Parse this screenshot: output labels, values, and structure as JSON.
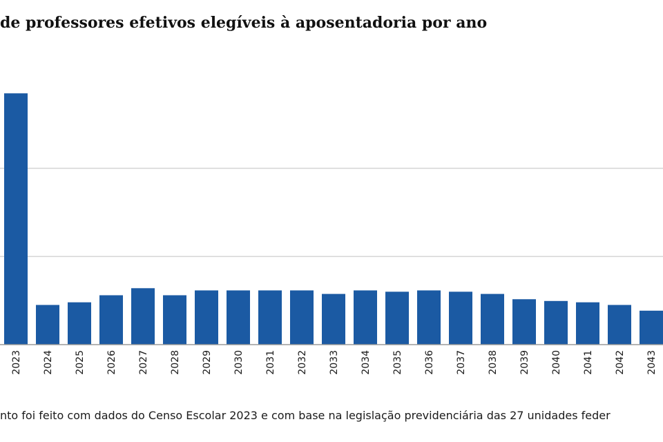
{
  "chart_data": {
    "type": "bar",
    "title": "de professores efetivos elegíveis à aposentadoria por ano",
    "categories": [
      "2023",
      "2024",
      "2025",
      "2026",
      "2027",
      "2028",
      "2029",
      "2030",
      "2031",
      "2032",
      "2033",
      "2034",
      "2035",
      "2036",
      "2037",
      "2038",
      "2039",
      "2040",
      "2041",
      "2042",
      "2043"
    ],
    "values": [
      57000,
      9000,
      9600,
      11200,
      12800,
      11200,
      12300,
      12300,
      12300,
      12300,
      11500,
      12300,
      12000,
      12300,
      12000,
      11500,
      10300,
      9900,
      9600,
      9000,
      7700
    ],
    "ylim": [
      0,
      60000
    ],
    "gridlines": [
      20000,
      40000
    ],
    "grid": true,
    "xlabel": "",
    "ylabel": "",
    "bar_color": "#1b5aa3"
  },
  "footnote": "nto foi feito com dados do Censo Escolar 2023 e com base na legislação previdenciária das 27 unidades feder"
}
